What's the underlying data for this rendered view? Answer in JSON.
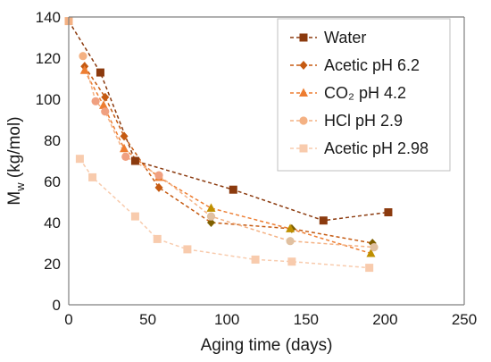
{
  "chart_data": {
    "type": "line",
    "xlabel": "Aging time (days)",
    "ylabel": "Mw (kg/mol)",
    "ylabel_main": "M",
    "ylabel_sub": "w",
    "ylabel_rest": " (kg/mol)",
    "xlim": [
      0,
      250
    ],
    "ylim": [
      0,
      140
    ],
    "xticks": [
      0,
      50,
      100,
      150,
      200,
      250
    ],
    "yticks": [
      0,
      20,
      40,
      60,
      80,
      100,
      120,
      140
    ],
    "grid": false,
    "legend": "top-right",
    "series": [
      {
        "name": "Water",
        "marker": "square",
        "line_color": "#8B3A0E",
        "points": [
          {
            "x": 0,
            "y": 138,
            "color": "#F4B183"
          },
          {
            "x": 20,
            "y": 113,
            "color": "#8B3A0E"
          },
          {
            "x": 42,
            "y": 70,
            "color": "#8B3A0E"
          },
          {
            "x": 104,
            "y": 56,
            "color": "#8B3A0E"
          },
          {
            "x": 161,
            "y": 41,
            "color": "#8B3A0E"
          },
          {
            "x": 202,
            "y": 45,
            "color": "#8B3A0E"
          }
        ]
      },
      {
        "name": "Acetic pH 6.2",
        "marker": "diamond",
        "line_color": "#C55A11",
        "points": [
          {
            "x": 10,
            "y": 116,
            "color": "#C55A11"
          },
          {
            "x": 23,
            "y": 101,
            "color": "#C55A11"
          },
          {
            "x": 35,
            "y": 82,
            "color": "#C55A11"
          },
          {
            "x": 57,
            "y": 57,
            "color": "#C55A11"
          },
          {
            "x": 90,
            "y": 40,
            "color": "#7F6000"
          },
          {
            "x": 141,
            "y": 37,
            "color": "#7F6000"
          },
          {
            "x": 192,
            "y": 30,
            "color": "#7F6000"
          }
        ]
      },
      {
        "name": "CO₂ pH 4.2",
        "marker": "triangle",
        "line_color": "#ED7D31",
        "points": [
          {
            "x": 10,
            "y": 114,
            "color": "#ED7D31"
          },
          {
            "x": 22,
            "y": 97,
            "color": "#ED7D31"
          },
          {
            "x": 35,
            "y": 76,
            "color": "#ED7D31"
          },
          {
            "x": 57,
            "y": 62,
            "color": "#ED7D31"
          },
          {
            "x": 90,
            "y": 47,
            "color": "#BF9000"
          },
          {
            "x": 140,
            "y": 37,
            "color": "#BF9000"
          },
          {
            "x": 191,
            "y": 25,
            "color": "#BF9000"
          }
        ]
      },
      {
        "name": "HCl pH 2.9",
        "marker": "circle",
        "line_color": "#F4B183",
        "points": [
          {
            "x": 9,
            "y": 121,
            "color": "#F4B183"
          },
          {
            "x": 17,
            "y": 99,
            "color": "#F0A080"
          },
          {
            "x": 23,
            "y": 94,
            "color": "#F0A080"
          },
          {
            "x": 36,
            "y": 72,
            "color": "#F0A080"
          },
          {
            "x": 57,
            "y": 63,
            "color": "#F0A080"
          },
          {
            "x": 90,
            "y": 43,
            "color": "#E0C0A0"
          },
          {
            "x": 140,
            "y": 31,
            "color": "#E0C0A0"
          },
          {
            "x": 193,
            "y": 28,
            "color": "#E0C0A0"
          }
        ]
      },
      {
        "name": "Acetic pH 2.98",
        "marker": "square",
        "line_color": "#F8CBAD",
        "points": [
          {
            "x": 7,
            "y": 71,
            "color": "#F8CBAD"
          },
          {
            "x": 15,
            "y": 62,
            "color": "#F8CBAD"
          },
          {
            "x": 42,
            "y": 43,
            "color": "#F8CBAD"
          },
          {
            "x": 56,
            "y": 32,
            "color": "#F8CBAD"
          },
          {
            "x": 75,
            "y": 27,
            "color": "#F8CBAD"
          },
          {
            "x": 118,
            "y": 22,
            "color": "#F8CBAD"
          },
          {
            "x": 141,
            "y": 21,
            "color": "#F8CBAD"
          },
          {
            "x": 190,
            "y": 18,
            "color": "#F8CBAD"
          }
        ]
      }
    ]
  }
}
